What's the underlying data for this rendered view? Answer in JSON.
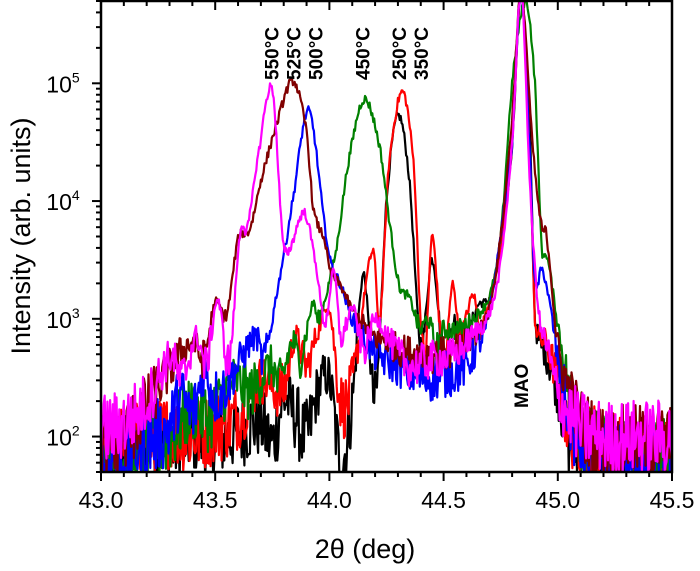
{
  "chart_data": {
    "type": "line",
    "xlabel": "2θ (deg)",
    "ylabel": "Intensity (arb. units)",
    "xlim": [
      43.0,
      45.5
    ],
    "ylim": [
      50,
      500000
    ],
    "yscale": "log",
    "grid": false,
    "x_ticks": [
      "43.0",
      "43.5",
      "44.0",
      "44.5",
      "45.0",
      "45.5"
    ],
    "y_ticks": [
      {
        "base": "10",
        "exp": "2",
        "value": 100
      },
      {
        "base": "10",
        "exp": "3",
        "value": 1000
      },
      {
        "base": "10",
        "exp": "4",
        "value": 10000
      },
      {
        "base": "10",
        "exp": "5",
        "value": 100000
      }
    ],
    "annotations": [
      {
        "text": "550°C",
        "x": 43.75
      },
      {
        "text": "525°C",
        "x": 43.84
      },
      {
        "text": "500°C",
        "x": 43.91
      },
      {
        "text": "450°C",
        "x": 44.15
      },
      {
        "text": "250°C",
        "x": 44.31
      },
      {
        "text": "350°C",
        "x": 44.36
      },
      {
        "text": "MAO",
        "x": 44.84
      }
    ],
    "series": [
      {
        "name": "350°C",
        "color": "#000000",
        "points": [
          [
            43.0,
            70
          ],
          [
            43.1,
            80
          ],
          [
            43.2,
            90
          ],
          [
            43.3,
            80
          ],
          [
            43.4,
            100
          ],
          [
            43.5,
            90
          ],
          [
            43.6,
            110
          ],
          [
            43.7,
            130
          ],
          [
            43.75,
            90
          ],
          [
            43.8,
            200
          ],
          [
            43.85,
            150
          ],
          [
            43.9,
            100
          ],
          [
            43.95,
            250
          ],
          [
            44.0,
            300
          ],
          [
            44.05,
            60
          ],
          [
            44.1,
            200
          ],
          [
            44.15,
            2400
          ],
          [
            44.2,
            200
          ],
          [
            44.25,
            10000
          ],
          [
            44.3,
            53000
          ],
          [
            44.35,
            15000
          ],
          [
            44.4,
            600
          ],
          [
            44.45,
            3200
          ],
          [
            44.5,
            500
          ],
          [
            44.55,
            1000
          ],
          [
            44.6,
            700
          ],
          [
            44.65,
            1300
          ],
          [
            44.7,
            1500
          ],
          [
            44.75,
            4000
          ],
          [
            44.8,
            30000
          ],
          [
            44.84,
            600000
          ],
          [
            44.88,
            30000
          ],
          [
            44.9,
            1000
          ],
          [
            44.95,
            500
          ],
          [
            45.0,
            250
          ],
          [
            45.05,
            90
          ],
          [
            45.1,
            80
          ],
          [
            45.2,
            70
          ],
          [
            45.3,
            70
          ],
          [
            45.4,
            70
          ],
          [
            45.5,
            70
          ]
        ]
      },
      {
        "name": "250°C",
        "color": "#ff0000",
        "points": [
          [
            43.0,
            80
          ],
          [
            43.1,
            90
          ],
          [
            43.2,
            100
          ],
          [
            43.3,
            110
          ],
          [
            43.4,
            100
          ],
          [
            43.5,
            120
          ],
          [
            43.6,
            150
          ],
          [
            43.7,
            300
          ],
          [
            43.8,
            250
          ],
          [
            43.85,
            700
          ],
          [
            43.9,
            400
          ],
          [
            43.95,
            800
          ],
          [
            44.0,
            1200
          ],
          [
            44.05,
            200
          ],
          [
            44.1,
            300
          ],
          [
            44.19,
            3800
          ],
          [
            44.22,
            1000
          ],
          [
            44.26,
            20000
          ],
          [
            44.32,
            85000
          ],
          [
            44.37,
            20000
          ],
          [
            44.4,
            1000
          ],
          [
            44.42,
            500
          ],
          [
            44.45,
            5000
          ],
          [
            44.5,
            400
          ],
          [
            44.54,
            2000
          ],
          [
            44.57,
            700
          ],
          [
            44.63,
            1600
          ],
          [
            44.66,
            800
          ],
          [
            44.7,
            1500
          ],
          [
            44.75,
            4000
          ],
          [
            44.8,
            30000
          ],
          [
            44.84,
            600000
          ],
          [
            44.88,
            20000
          ],
          [
            44.9,
            1000
          ],
          [
            44.95,
            600
          ],
          [
            45.0,
            300
          ],
          [
            45.05,
            120
          ],
          [
            45.1,
            100
          ],
          [
            45.2,
            90
          ],
          [
            45.3,
            80
          ],
          [
            45.4,
            80
          ],
          [
            45.5,
            80
          ]
        ]
      },
      {
        "name": "450°C",
        "color": "#008000",
        "points": [
          [
            43.0,
            55
          ],
          [
            43.1,
            65
          ],
          [
            43.2,
            80
          ],
          [
            43.3,
            100
          ],
          [
            43.4,
            170
          ],
          [
            43.48,
            150
          ],
          [
            43.58,
            300
          ],
          [
            43.65,
            240
          ],
          [
            43.75,
            400
          ],
          [
            43.78,
            270
          ],
          [
            43.84,
            640
          ],
          [
            43.87,
            450
          ],
          [
            43.93,
            1370
          ],
          [
            43.95,
            1000
          ],
          [
            44.03,
            3800
          ],
          [
            44.08,
            20000
          ],
          [
            44.15,
            73000
          ],
          [
            44.22,
            29000
          ],
          [
            44.28,
            4000
          ],
          [
            44.31,
            1800
          ],
          [
            44.35,
            1500
          ],
          [
            44.4,
            810
          ],
          [
            44.43,
            1000
          ],
          [
            44.47,
            580
          ],
          [
            44.5,
            800
          ],
          [
            44.55,
            800
          ],
          [
            44.6,
            900
          ],
          [
            44.7,
            1500
          ],
          [
            44.75,
            5000
          ],
          [
            44.8,
            100000
          ],
          [
            44.86,
            500000
          ],
          [
            44.9,
            100000
          ],
          [
            44.93,
            4100
          ],
          [
            44.95,
            3500
          ],
          [
            45.0,
            900
          ],
          [
            45.05,
            250
          ],
          [
            45.1,
            110
          ],
          [
            45.2,
            80
          ],
          [
            45.3,
            70
          ],
          [
            45.4,
            70
          ],
          [
            45.5,
            70
          ]
        ]
      },
      {
        "name": "500°C",
        "color": "#0000ff",
        "points": [
          [
            43.0,
            60
          ],
          [
            43.1,
            70
          ],
          [
            43.2,
            90
          ],
          [
            43.3,
            120
          ],
          [
            43.35,
            220
          ],
          [
            43.4,
            150
          ],
          [
            43.45,
            350
          ],
          [
            43.5,
            220
          ],
          [
            43.58,
            350
          ],
          [
            43.68,
            700
          ],
          [
            43.71,
            450
          ],
          [
            43.78,
            2100
          ],
          [
            43.83,
            8000
          ],
          [
            43.91,
            58000
          ],
          [
            43.99,
            4700
          ],
          [
            44.02,
            2600
          ],
          [
            44.05,
            1900
          ],
          [
            44.1,
            1000
          ],
          [
            44.15,
            700
          ],
          [
            44.2,
            500
          ],
          [
            44.3,
            400
          ],
          [
            44.4,
            320
          ],
          [
            44.5,
            330
          ],
          [
            44.6,
            400
          ],
          [
            44.65,
            600
          ],
          [
            44.7,
            1200
          ],
          [
            44.8,
            30000
          ],
          [
            44.84,
            600000
          ],
          [
            44.88,
            20000
          ],
          [
            44.9,
            2000
          ],
          [
            44.93,
            2600
          ],
          [
            44.96,
            1500
          ],
          [
            45.0,
            450
          ],
          [
            45.05,
            150
          ],
          [
            45.1,
            80
          ],
          [
            45.2,
            65
          ],
          [
            45.3,
            60
          ],
          [
            45.4,
            60
          ],
          [
            45.5,
            60
          ]
        ]
      },
      {
        "name": "525°C",
        "color": "#800000",
        "points": [
          [
            43.0,
            80
          ],
          [
            43.1,
            100
          ],
          [
            43.2,
            180
          ],
          [
            43.3,
            370
          ],
          [
            43.4,
            630
          ],
          [
            43.45,
            470
          ],
          [
            43.5,
            1370
          ],
          [
            43.55,
            1100
          ],
          [
            43.6,
            4700
          ],
          [
            43.65,
            5700
          ],
          [
            43.7,
            15000
          ],
          [
            43.76,
            40000
          ],
          [
            43.84,
            105000
          ],
          [
            43.9,
            40000
          ],
          [
            43.93,
            8400
          ],
          [
            43.98,
            4700
          ],
          [
            44.0,
            2600
          ],
          [
            44.05,
            1900
          ],
          [
            44.1,
            1200
          ],
          [
            44.15,
            900
          ],
          [
            44.2,
            700
          ],
          [
            44.25,
            650
          ],
          [
            44.3,
            550
          ],
          [
            44.4,
            500
          ],
          [
            44.5,
            500
          ],
          [
            44.6,
            600
          ],
          [
            44.7,
            1200
          ],
          [
            44.75,
            5000
          ],
          [
            44.8,
            50000
          ],
          [
            44.84,
            600000
          ],
          [
            44.89,
            30000
          ],
          [
            44.93,
            6000
          ],
          [
            44.95,
            5000
          ],
          [
            45.0,
            580
          ],
          [
            45.05,
            250
          ],
          [
            45.1,
            130
          ],
          [
            45.2,
            90
          ],
          [
            45.3,
            90
          ],
          [
            45.4,
            90
          ],
          [
            45.5,
            90
          ]
        ]
      },
      {
        "name": "550°C",
        "color": "#ff00ff",
        "points": [
          [
            43.0,
            110
          ],
          [
            43.1,
            130
          ],
          [
            43.2,
            200
          ],
          [
            43.31,
            480
          ],
          [
            43.35,
            300
          ],
          [
            43.42,
            700
          ],
          [
            43.46,
            400
          ],
          [
            43.51,
            1450
          ],
          [
            43.56,
            430
          ],
          [
            43.61,
            5400
          ],
          [
            43.64,
            5800
          ],
          [
            43.68,
            20000
          ],
          [
            43.75,
            90000
          ],
          [
            43.8,
            4000
          ],
          [
            43.89,
            8000
          ],
          [
            43.94,
            3000
          ],
          [
            43.98,
            930
          ],
          [
            44.02,
            2500
          ],
          [
            44.05,
            700
          ],
          [
            44.1,
            1250
          ],
          [
            44.15,
            550
          ],
          [
            44.2,
            1000
          ],
          [
            44.28,
            580
          ],
          [
            44.35,
            400
          ],
          [
            44.45,
            450
          ],
          [
            44.55,
            500
          ],
          [
            44.65,
            800
          ],
          [
            44.7,
            1100
          ],
          [
            44.75,
            3000
          ],
          [
            44.8,
            30000
          ],
          [
            44.84,
            600000
          ],
          [
            44.88,
            11000
          ],
          [
            44.92,
            1000
          ],
          [
            44.95,
            600
          ],
          [
            45.0,
            220
          ],
          [
            45.1,
            120
          ],
          [
            45.2,
            100
          ],
          [
            45.3,
            100
          ],
          [
            45.4,
            100
          ],
          [
            45.5,
            100
          ]
        ]
      }
    ]
  }
}
